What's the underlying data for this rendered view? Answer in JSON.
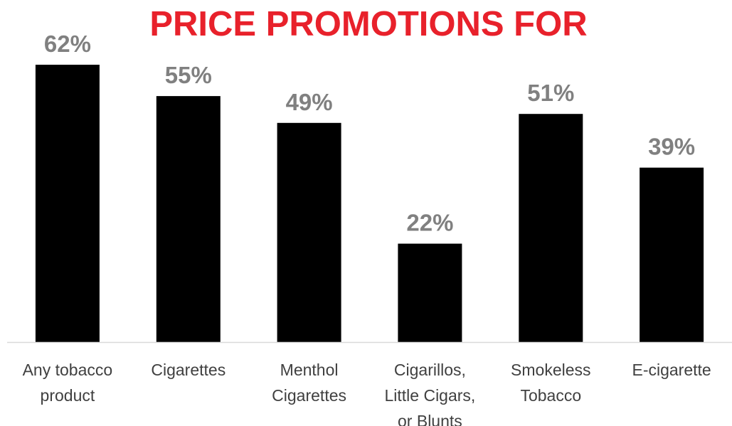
{
  "chart_data": {
    "type": "bar",
    "title": "PRICE PROMOTIONS FOR",
    "categories": [
      [
        "Any tobacco",
        "product"
      ],
      [
        "Cigarettes"
      ],
      [
        "Menthol",
        "Cigarettes"
      ],
      [
        "Cigarillos,",
        "Little Cigars,",
        "or Blunts"
      ],
      [
        "Smokeless",
        "Tobacco"
      ],
      [
        "E-cigarette"
      ]
    ],
    "values": [
      62,
      55,
      49,
      22,
      51,
      39
    ],
    "data_labels": [
      "62%",
      "55%",
      "49%",
      "22%",
      "51%",
      "39%"
    ],
    "xlabel": "",
    "ylabel": "",
    "ylim": [
      0,
      70
    ],
    "grid": false,
    "legend": "none"
  },
  "colors": {
    "bar": "#000000",
    "title": "#e8212b",
    "data_label": "#808080",
    "tick_label": "#404040",
    "axis": "#d9d9d9"
  }
}
